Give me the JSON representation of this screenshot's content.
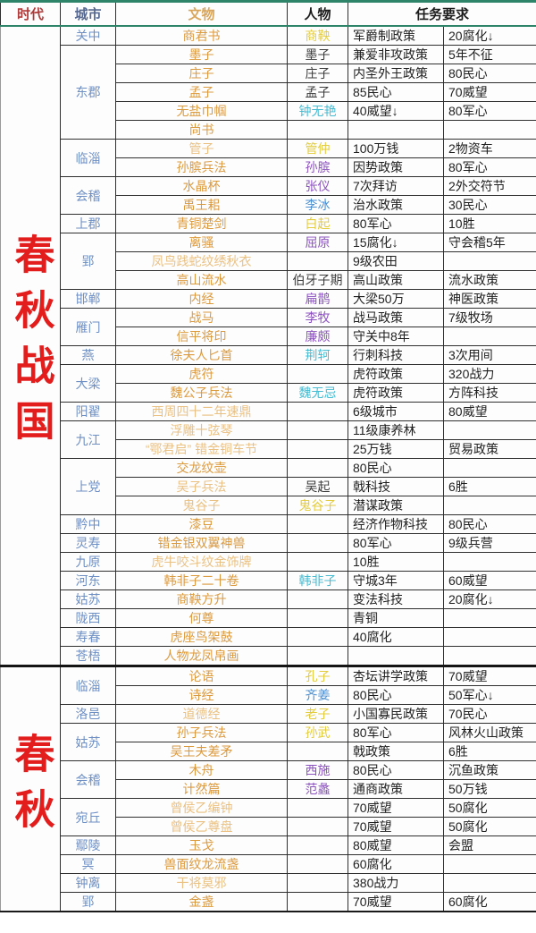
{
  "header": {
    "era": "时代",
    "city": "城市",
    "artifact": "文物",
    "person": "人物",
    "task": "任务要求"
  },
  "palette": {
    "top_line_green": "#2e8468",
    "era_red": "#e31c1c",
    "city_blue": "#6e8fc4",
    "artifact_orange": "#dc9a3f",
    "artifact_pale": "#eac183",
    "person_yellow": "#e3cc3f",
    "person_purple": "#8c52c0",
    "person_teal": "#45bcd2",
    "person_blue": "#4b8fd2",
    "person_dark": "#3c3c3c",
    "header_era_red": "#b03a3a",
    "header_artifact_tan": "#d9a55a"
  },
  "sections": [
    {
      "era": "春秋战国",
      "groups": [
        {
          "city": "关中",
          "rows": [
            {
              "artifact": "商君书",
              "person": "商鞅",
              "pc": "yellow",
              "task1": "军爵制政策",
              "task2": "20腐化↓"
            }
          ]
        },
        {
          "city": "东郡",
          "rows": [
            {
              "artifact": "墨子",
              "person": "墨子",
              "pc": "dark",
              "task1": "兼爱非攻政策",
              "task2": "5年不征"
            },
            {
              "artifact": "庄子",
              "person": "庄子",
              "pc": "dark",
              "task1": "内圣外王政策",
              "task2": "80民心"
            },
            {
              "artifact": "孟子",
              "person": "孟子",
              "pc": "dark",
              "task1": "85民心",
              "task2": "70威望"
            },
            {
              "artifact": "无盐巾帼",
              "person": "钟无艳",
              "pc": "teal",
              "task1": "40威望↓",
              "task2": "80军心"
            },
            {
              "artifact": "尚书",
              "person": "",
              "task1": "",
              "task2": ""
            }
          ]
        },
        {
          "city": "临淄",
          "rows": [
            {
              "artifact": "管子",
              "ac": "pale",
              "person": "管仲",
              "pc": "yellow",
              "task1": "100万钱",
              "task2": "2物资车"
            },
            {
              "artifact": "孙膑兵法",
              "person": "孙膑",
              "pc": "purple",
              "task1": "因势政策",
              "task2": "80军心"
            }
          ]
        },
        {
          "city": "会稽",
          "rows": [
            {
              "artifact": "水晶杯",
              "person": "张仪",
              "pc": "purple",
              "task1": "7次拜访",
              "task2": "2外交符节"
            },
            {
              "artifact": "禹王耜",
              "person": "李冰",
              "pc": "blue",
              "task1": "治水政策",
              "task2": "30民心"
            }
          ]
        },
        {
          "city": "上郡",
          "rows": [
            {
              "artifact": "青铜楚剑",
              "person": "白起",
              "pc": "yellow",
              "task1": "80军心",
              "task2": "10胜"
            }
          ]
        },
        {
          "city": "郢",
          "rows": [
            {
              "artifact": "离骚",
              "person": "屈原",
              "pc": "purple",
              "task1": "15腐化↓",
              "task2": "守会稽5年"
            },
            {
              "artifact": "凤鸟践蛇纹绣秋衣",
              "ac": "pale",
              "person": "",
              "task1": "9级农田",
              "task2": ""
            },
            {
              "artifact": "高山流水",
              "person": "伯牙子期",
              "pc": "dark",
              "task1": "高山政策",
              "task2": "流水政策"
            }
          ]
        },
        {
          "city": "邯郸",
          "rows": [
            {
              "artifact": "内经",
              "person": "扁鹊",
              "pc": "purple",
              "task1": "大梁50万",
              "task2": "神医政策"
            }
          ]
        },
        {
          "city": "雁门",
          "rows": [
            {
              "artifact": "战马",
              "person": "李牧",
              "pc": "purple",
              "task1": "战马政策",
              "task2": "7级牧场"
            },
            {
              "artifact": "信平将印",
              "person": "廉颇",
              "pc": "purple",
              "task1": "守关中8年",
              "task2": ""
            }
          ]
        },
        {
          "city": "燕",
          "rows": [
            {
              "artifact": "徐夫人匕首",
              "person": "荆轲",
              "pc": "teal",
              "task1": "行刺科技",
              "task2": "3次用间"
            }
          ]
        },
        {
          "city": "大梁",
          "rows": [
            {
              "artifact": "虎符",
              "person": "",
              "task1": "虎符政策",
              "task2": "320战力"
            },
            {
              "artifact": "魏公子兵法",
              "person": "魏无忌",
              "pc": "teal",
              "task1": "虎符政策",
              "task2": "方阵科技"
            }
          ]
        },
        {
          "city": "阳翟",
          "rows": [
            {
              "artifact": "西周四十二年速鼎",
              "ac": "pale",
              "person": "",
              "task1": "6级城市",
              "task2": "80威望"
            }
          ]
        },
        {
          "city": "九江",
          "rows": [
            {
              "artifact": "浮雕十弦琴",
              "ac": "pale",
              "person": "",
              "task1": "11级康养林",
              "task2": ""
            },
            {
              "artifact": "“鄂君启” 错金铜车节",
              "ac": "pale",
              "person": "",
              "task1": "25万钱",
              "task2": "贸易政策"
            }
          ]
        },
        {
          "city": "上党",
          "rows": [
            {
              "artifact": "交龙纹壶",
              "person": "",
              "task1": "80民心",
              "task2": ""
            },
            {
              "artifact": "吴子兵法",
              "ac": "pale",
              "person": "吴起",
              "pc": "dark",
              "task1": "戟科技",
              "task2": "6胜"
            },
            {
              "artifact": "鬼谷子",
              "ac": "pale",
              "person": "鬼谷子",
              "pc": "yellow",
              "task1": "潜谋政策",
              "task2": ""
            }
          ]
        },
        {
          "city": "黔中",
          "rows": [
            {
              "artifact": "漆豆",
              "person": "",
              "task1": "经济作物科技",
              "task2": "80民心"
            }
          ]
        },
        {
          "city": "灵寿",
          "rows": [
            {
              "artifact": "错金银双翼神兽",
              "person": "",
              "task1": "80军心",
              "task2": "9级兵营"
            }
          ]
        },
        {
          "city": "九原",
          "rows": [
            {
              "artifact": "虎牛咬斗纹金饰牌",
              "ac": "pale",
              "person": "",
              "task1": "10胜",
              "task2": ""
            }
          ]
        },
        {
          "city": "河东",
          "rows": [
            {
              "artifact": "韩非子二十卷",
              "person": "韩非子",
              "pc": "teal",
              "task1": "守城3年",
              "task2": "60威望"
            }
          ]
        },
        {
          "city": "姑苏",
          "rows": [
            {
              "artifact": "商鞅方升",
              "person": "",
              "task1": "变法科技",
              "task2": "20腐化↓"
            }
          ]
        },
        {
          "city": "陇西",
          "rows": [
            {
              "artifact": "何尊",
              "person": "",
              "task1": "青铜",
              "task2": ""
            }
          ]
        },
        {
          "city": "寿春",
          "rows": [
            {
              "artifact": "虎座鸟架鼓",
              "person": "",
              "task1": "40腐化",
              "task2": ""
            }
          ]
        },
        {
          "city": "苍梧",
          "rows": [
            {
              "artifact": "人物龙凤帛画",
              "person": "",
              "task1": "",
              "task2": ""
            }
          ]
        }
      ]
    },
    {
      "era": "春秋",
      "groups": [
        {
          "city": "临淄",
          "rows": [
            {
              "artifact": "论语",
              "person": "孔子",
              "pc": "yellow",
              "task1": "杏坛讲学政策",
              "task2": "70威望"
            },
            {
              "artifact": "诗经",
              "person": "齐姜",
              "pc": "blue",
              "task1": "80民心",
              "task2": "50军心↓"
            }
          ]
        },
        {
          "city": "洛邑",
          "rows": [
            {
              "artifact": "道德经",
              "ac": "pale",
              "person": "老子",
              "pc": "yellow",
              "task1": "小国寡民政策",
              "task2": "70民心"
            }
          ]
        },
        {
          "city": "姑苏",
          "rows": [
            {
              "artifact": "孙子兵法",
              "person": "孙武",
              "pc": "yellow",
              "task1": "80军心",
              "task2": "风林火山政策"
            },
            {
              "artifact": "吴王夫差矛",
              "person": "",
              "task1": "戟政策",
              "task2": "6胜"
            }
          ]
        },
        {
          "city": "会稽",
          "rows": [
            {
              "artifact": "木舟",
              "person": "西施",
              "pc": "purple",
              "task1": "80民心",
              "task2": "沉鱼政策"
            },
            {
              "artifact": "计然篇",
              "person": "范蠡",
              "pc": "purple",
              "task1": "通商政策",
              "task2": "50万钱"
            }
          ]
        },
        {
          "city": "宛丘",
          "rows": [
            {
              "artifact": "曾侯乙编钟",
              "ac": "pale",
              "person": "",
              "task1": "70威望",
              "task2": "50腐化"
            },
            {
              "artifact": "曾侯乙尊盘",
              "ac": "pale",
              "person": "",
              "task1": "70威望",
              "task2": "50腐化"
            }
          ]
        },
        {
          "city": "鄢陵",
          "rows": [
            {
              "artifact": "玉戈",
              "person": "",
              "task1": "80威望",
              "task2": "会盟"
            }
          ]
        },
        {
          "city": "冥",
          "rows": [
            {
              "artifact": "兽面纹龙流盏",
              "person": "",
              "task1": "60腐化",
              "task2": ""
            }
          ]
        },
        {
          "city": "钟离",
          "rows": [
            {
              "artifact": "干将莫邪",
              "ac": "pale",
              "person": "",
              "task1": "380战力",
              "task2": ""
            }
          ]
        },
        {
          "city": "郢",
          "rows": [
            {
              "artifact": "金盏",
              "person": "",
              "task1": "70威望",
              "task2": "60腐化"
            }
          ]
        }
      ]
    }
  ]
}
